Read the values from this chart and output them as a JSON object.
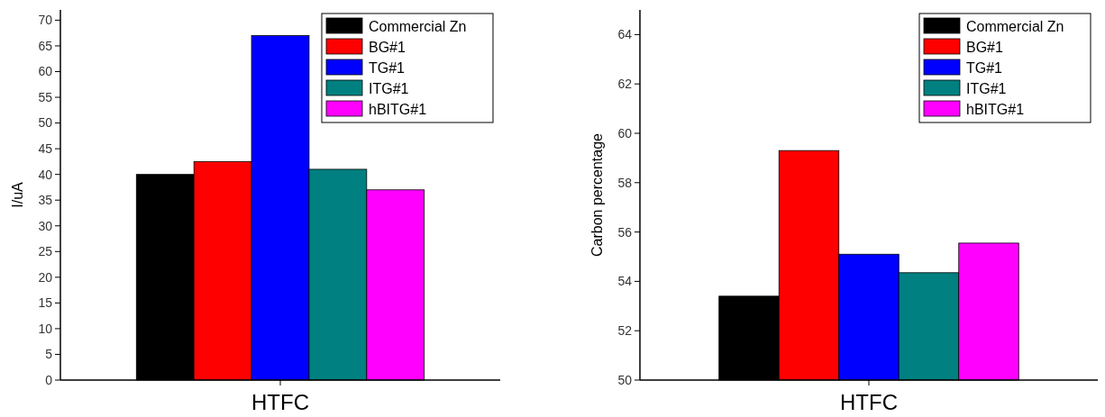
{
  "chart_data": [
    {
      "type": "bar",
      "ylabel": "I/uA",
      "categories": [
        "HTFC"
      ],
      "ylim": [
        0,
        72
      ],
      "yticks": [
        0,
        5,
        10,
        15,
        20,
        25,
        30,
        35,
        40,
        45,
        50,
        55,
        60,
        65,
        70
      ],
      "legend": "top right",
      "series": [
        {
          "name": "Commercial Zn",
          "color": "#000000",
          "values": [
            40
          ]
        },
        {
          "name": "BG#1",
          "color": "#ff0000",
          "values": [
            42.5
          ]
        },
        {
          "name": "TG#1",
          "color": "#0000ff",
          "values": [
            67
          ]
        },
        {
          "name": "ITG#1",
          "color": "#008080",
          "values": [
            41
          ]
        },
        {
          "name": "hBITG#1",
          "color": "#ff00ff",
          "values": [
            37
          ]
        }
      ]
    },
    {
      "type": "bar",
      "ylabel": "Carbon percentage",
      "categories": [
        "HTFC"
      ],
      "ylim": [
        50,
        65
      ],
      "yticks": [
        50,
        52,
        54,
        56,
        58,
        60,
        62,
        64
      ],
      "legend": "top right",
      "series": [
        {
          "name": "Commercial Zn",
          "color": "#000000",
          "values": [
            53.4
          ]
        },
        {
          "name": "BG#1",
          "color": "#ff0000",
          "values": [
            59.3
          ]
        },
        {
          "name": "TG#1",
          "color": "#0000ff",
          "values": [
            55.1
          ]
        },
        {
          "name": "ITG#1",
          "color": "#008080",
          "values": [
            54.35
          ]
        },
        {
          "name": "hBITG#1",
          "color": "#ff00ff",
          "values": [
            55.55
          ]
        }
      ]
    }
  ]
}
